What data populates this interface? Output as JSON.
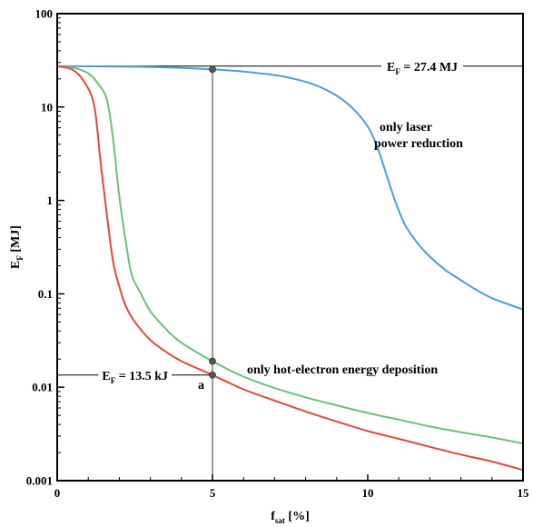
{
  "chart_data": {
    "type": "line",
    "xlabel": "f",
    "xlabel_sub": "sat",
    "xlabel_unit": " [%]",
    "ylabel": "E",
    "ylabel_sub": "F",
    "ylabel_unit": " [MJ]",
    "xlim": [
      0,
      15
    ],
    "ylim": [
      0.001,
      100
    ],
    "y_scale": "log",
    "x_ticks": [
      0,
      5,
      10,
      15
    ],
    "x_tick_labels": [
      "0",
      "5",
      "10",
      "15"
    ],
    "y_ticks": [
      0.001,
      0.01,
      0.1,
      1,
      10,
      100
    ],
    "y_tick_labels": [
      "0.001",
      "0.01",
      "0.1",
      "1",
      "10",
      "100"
    ],
    "grid": false,
    "series": [
      {
        "color": "#4a9fd6",
        "x": [
          0,
          1,
          2,
          3,
          4,
          5,
          6,
          7,
          7.5,
          8,
          8.5,
          9,
          9.5,
          10,
          10.3,
          10.6,
          10.9,
          11.2,
          11.6,
          12,
          12.5,
          13,
          13.5,
          14,
          14.5,
          15
        ],
        "y": [
          27.4,
          27.3,
          27.1,
          26.8,
          26.2,
          25.3,
          24,
          22,
          20.5,
          18.6,
          16.2,
          13.2,
          9.8,
          6.2,
          3.8,
          1.9,
          0.95,
          0.55,
          0.35,
          0.25,
          0.18,
          0.14,
          0.11,
          0.09,
          0.078,
          0.068
        ]
      },
      {
        "color": "#6dbf7a",
        "x": [
          0,
          0.5,
          1,
          1.3,
          1.6,
          1.8,
          2,
          2.2,
          2.4,
          2.7,
          3,
          3.5,
          4,
          5,
          6,
          7,
          8,
          9,
          10,
          11,
          12,
          13,
          14,
          15
        ],
        "y": [
          27.4,
          26.5,
          23,
          18,
          12,
          4.5,
          1.1,
          0.38,
          0.16,
          0.1,
          0.065,
          0.042,
          0.03,
          0.019,
          0.013,
          0.0098,
          0.0078,
          0.0064,
          0.0053,
          0.0045,
          0.0038,
          0.0033,
          0.0029,
          0.0025
        ]
      },
      {
        "color": "#e0483a",
        "x": [
          0,
          0.5,
          0.9,
          1.2,
          1.4,
          1.6,
          1.8,
          2,
          2.2,
          2.5,
          3,
          3.5,
          4,
          5,
          6,
          7,
          8,
          9,
          10,
          11,
          12,
          13,
          14,
          15
        ],
        "y": [
          27.4,
          25,
          18,
          10,
          2.5,
          0.7,
          0.22,
          0.12,
          0.075,
          0.05,
          0.032,
          0.024,
          0.019,
          0.0135,
          0.0095,
          0.0072,
          0.0055,
          0.0043,
          0.0034,
          0.0028,
          0.0023,
          0.0019,
          0.0016,
          0.0013
        ]
      }
    ],
    "reference_lines": {
      "h_top": {
        "y": 27.4,
        "color": "#000000"
      },
      "h_low": {
        "y": 0.0135,
        "color": "#000000"
      },
      "vertical": {
        "x": 5,
        "color": "#666666"
      }
    },
    "markers": [
      {
        "x": 5,
        "y": 25.3
      },
      {
        "x": 5,
        "y": 0.019
      },
      {
        "x": 5,
        "y": 0.0135
      }
    ],
    "annotations": {
      "top_value_pre": "E",
      "top_value_sub": "F",
      "top_value_post": " = 27.4 MJ",
      "low_value_pre": "E",
      "low_value_sub": "F",
      "low_value_post": " = 13.5 kJ",
      "point_label": "a",
      "laser_line1": "only laser",
      "laser_line2": "power reduction",
      "hot_electron": "only hot-electron energy deposition"
    }
  }
}
